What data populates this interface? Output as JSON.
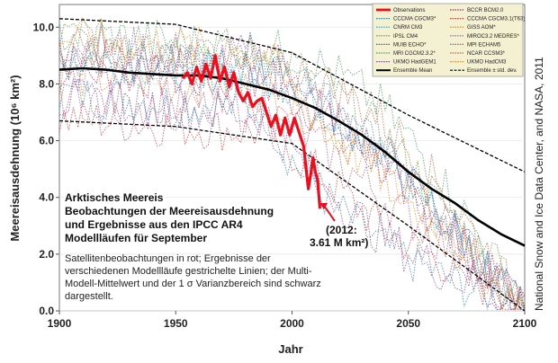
{
  "chart_data": {
    "type": "line",
    "title": "Arktisches Meereis",
    "subtitle_lines": [
      "Beobachtungen der Meereisausdehnung",
      "und Ergebnisse aus den IPCC AR4",
      "Modellläufen für September"
    ],
    "description_lines": [
      "Satellitenbeobachtungen in rot; Ergebnisse der",
      "verschiedenen Modellläufe gestrichelte Linien; der Multi-",
      "Modell-Mittelwert und der 1 σ Varianzbereich sind schwarz",
      "dargestellt."
    ],
    "xlabel": "Jahr",
    "ylabel": "Meereisausdehnung (10⁶ km²)",
    "xlim": [
      1900,
      2100
    ],
    "ylim": [
      0,
      10.8
    ],
    "xticks": [
      "1900",
      "1950",
      "2000",
      "2050",
      "2100"
    ],
    "yticks": [
      "0.0",
      "2.0",
      "4.0",
      "6.0",
      "8.0",
      "10.0"
    ],
    "callout_lines": [
      "(2012:",
      "3.61 M km²)"
    ],
    "credit": "National Snow and Ice Data Center, and NASA, 2011",
    "legend": [
      [
        "Observations",
        "BCCR BCM2.0"
      ],
      [
        "CCCMA CGCM3*",
        "CCCMA CGCM3.1(T63)"
      ],
      [
        "CNRM CM3",
        "GISS AOM*"
      ],
      [
        "IPSL CM4",
        "MIROC3.2 MEDRES*"
      ],
      [
        "MUIB ECHO*",
        "MPI ECHAM5"
      ],
      [
        "MRI CGCM2.3.2*",
        "NCAR CCSM3*"
      ],
      [
        "UKMO HadGEM1",
        "UKMO HadCM3"
      ],
      [
        "Ensemble Mean",
        "Ensemble ± std. dev."
      ]
    ],
    "legend_colors": [
      "#e8101e",
      "#9b2a63",
      "#2f7fb0",
      "#c83a3a",
      "#2aa0c8",
      "#d08030",
      "#6a8a3a",
      "#8a5a9a",
      "#3060a0",
      "#b0507a",
      "#4a9a5a",
      "#c06040",
      "#7a4a9a",
      "#ee8a2a",
      "#5a7ab0",
      "#a04a4a"
    ],
    "series": [
      {
        "name": "Observations",
        "color": "#e8101e",
        "x": [
          1953,
          1955,
          1957,
          1959,
          1961,
          1963,
          1965,
          1967,
          1969,
          1971,
          1973,
          1975,
          1977,
          1979,
          1981,
          1983,
          1985,
          1987,
          1989,
          1991,
          1993,
          1995,
          1997,
          1999,
          2001,
          2003,
          2005,
          2007,
          2008,
          2009,
          2010,
          2011,
          2012
        ],
        "values": [
          8.2,
          8.4,
          8.0,
          8.6,
          8.1,
          8.7,
          8.2,
          9.0,
          8.1,
          8.6,
          7.9,
          8.4,
          7.7,
          7.4,
          7.7,
          7.2,
          7.4,
          7.5,
          7.0,
          6.5,
          6.9,
          6.2,
          6.8,
          6.2,
          6.8,
          6.3,
          5.8,
          4.3,
          4.8,
          5.4,
          4.9,
          4.6,
          3.6
        ]
      },
      {
        "name": "Ensemble Mean",
        "color": "#000000",
        "x": [
          1900,
          1910,
          1920,
          1930,
          1940,
          1950,
          1960,
          1970,
          1980,
          1990,
          2000,
          2010,
          2020,
          2030,
          2040,
          2050,
          2060,
          2070,
          2080,
          2090,
          2100
        ],
        "values": [
          8.5,
          8.55,
          8.5,
          8.4,
          8.35,
          8.3,
          8.3,
          8.2,
          8.0,
          7.8,
          7.5,
          7.15,
          6.7,
          6.2,
          5.6,
          4.9,
          4.3,
          3.8,
          3.2,
          2.7,
          2.3
        ]
      },
      {
        "name": "Ensemble + std. dev.",
        "color": "#000000",
        "x": [
          1900,
          1950,
          2000,
          2050,
          2100
        ],
        "values": [
          10.3,
          10.1,
          9.1,
          6.9,
          4.9
        ]
      },
      {
        "name": "Ensemble - std. dev.",
        "color": "#000000",
        "x": [
          1900,
          1950,
          2000,
          2050,
          2100
        ],
        "values": [
          6.7,
          6.5,
          5.9,
          3.0,
          0.0
        ]
      }
    ]
  }
}
